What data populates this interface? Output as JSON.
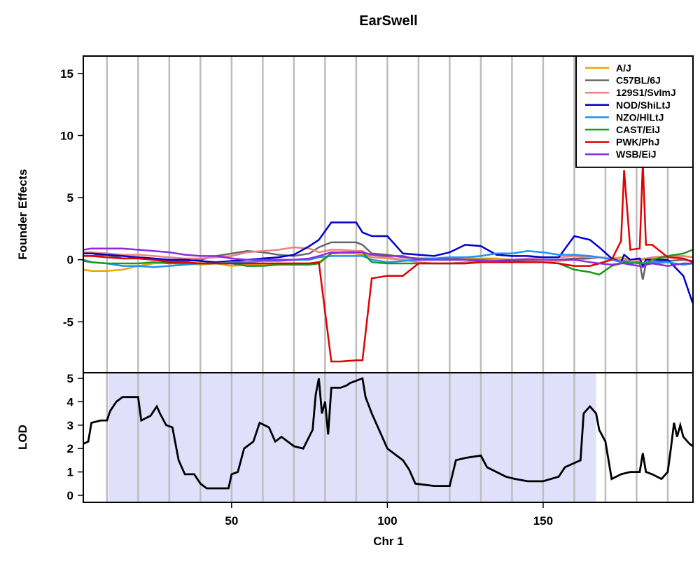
{
  "chart_data": [
    {
      "type": "line",
      "title": "EarSwell",
      "ylabel": "Founder Effects",
      "xlim": [
        2.4,
        198.1
      ],
      "ylim": [
        -9.1,
        16.4
      ],
      "yticks": [
        -5,
        0,
        5,
        10,
        15
      ],
      "xgrid": [
        10,
        20,
        30,
        40,
        50,
        60,
        70,
        80,
        90,
        100,
        110,
        120,
        130,
        140,
        150,
        160,
        170,
        180,
        190
      ],
      "legend": "topright",
      "x": [
        2.5,
        5,
        10,
        15,
        20,
        25,
        30,
        35,
        40,
        45,
        50,
        55,
        60,
        65,
        70,
        75,
        78,
        82,
        85,
        90,
        92,
        95,
        100,
        105,
        110,
        115,
        120,
        125,
        130,
        135,
        140,
        145,
        150,
        155,
        160,
        165,
        168,
        172,
        175,
        176,
        178,
        181,
        182,
        183,
        185,
        190,
        195,
        198
      ],
      "series": [
        {
          "name": "A/J",
          "color": "#e8a800",
          "values": [
            -0.8,
            -0.9,
            -0.9,
            -0.8,
            -0.5,
            -0.3,
            -0.2,
            -0.3,
            -0.4,
            -0.3,
            -0.5,
            -0.4,
            -0.4,
            -0.3,
            -0.3,
            -0.3,
            -0.2,
            0.5,
            0.5,
            0.5,
            0.4,
            0.2,
            0.1,
            0,
            0,
            0.1,
            0.1,
            0.1,
            0.1,
            0.1,
            0,
            -0.1,
            -0.2,
            -0.1,
            0,
            0.1,
            0.2,
            0.1,
            0.2,
            0.1,
            0,
            0,
            0.1,
            0.1,
            0.1,
            0.2,
            0.3,
            0.2
          ]
        },
        {
          "name": "C57BL/6J",
          "color": "#666666",
          "values": [
            0.3,
            0.3,
            0.4,
            0.1,
            0.1,
            0,
            -0.1,
            -0.1,
            0,
            0.3,
            0.5,
            0.7,
            0.6,
            0.4,
            0.3,
            0.5,
            1.0,
            1.4,
            1.4,
            1.4,
            1.2,
            0.5,
            0.4,
            0.2,
            0.1,
            0.1,
            0.1,
            0,
            0,
            0,
            0,
            0,
            0,
            0,
            0.1,
            0.1,
            0.2,
            0.1,
            0,
            0,
            -0.2,
            -0.3,
            -1.6,
            -0.3,
            -0.2,
            -0.1,
            0,
            -0.1
          ]
        },
        {
          "name": "129S1/SvImJ",
          "color": "#f08080",
          "values": [
            0.6,
            0.6,
            0.5,
            0.4,
            0.4,
            0.3,
            0.2,
            0.1,
            0.1,
            0.2,
            0.3,
            0.6,
            0.7,
            0.8,
            1.0,
            0.9,
            0.6,
            0.8,
            0.8,
            0.7,
            0.7,
            0.2,
            0.2,
            0,
            -0.2,
            -0.3,
            -0.3,
            -0.2,
            -0.1,
            0,
            0,
            0.1,
            0.2,
            0.2,
            0.3,
            0.2,
            0.2,
            0.1,
            0,
            0,
            0,
            0,
            0,
            0.1,
            0.2,
            0.3,
            0.3,
            0.2
          ]
        },
        {
          "name": "NOD/ShiLtJ",
          "color": "#0000cc",
          "values": [
            0.5,
            0.5,
            0.4,
            0.3,
            0.2,
            0.1,
            0,
            0,
            -0.1,
            -0.2,
            -0.1,
            0,
            0.1,
            0.2,
            0.4,
            1.1,
            1.6,
            3.0,
            3.0,
            3.0,
            2.2,
            1.9,
            1.9,
            0.5,
            0.4,
            0.3,
            0.6,
            1.2,
            1.1,
            0.4,
            0.3,
            0.3,
            0.2,
            0.2,
            1.9,
            1.6,
            1.0,
            0.1,
            -0.2,
            0.4,
            0,
            0.1,
            -0.5,
            0,
            0,
            0,
            -1.3,
            -3.5
          ]
        },
        {
          "name": "NZO/HlLtJ",
          "color": "#1e90ff",
          "values": [
            0,
            -0.2,
            -0.3,
            -0.5,
            -0.5,
            -0.6,
            -0.5,
            -0.4,
            -0.3,
            -0.3,
            -0.2,
            -0.2,
            -0.1,
            -0.1,
            0,
            0,
            0.2,
            0.3,
            0.3,
            0.3,
            0.3,
            0,
            -0.2,
            -0.1,
            0,
            0.1,
            0.2,
            0.2,
            0.3,
            0.5,
            0.5,
            0.7,
            0.6,
            0.4,
            0.4,
            0.3,
            0.2,
            0,
            -0.2,
            -0.1,
            -0.2,
            -0.2,
            -0.3,
            -0.2,
            -0.3,
            -0.2,
            -0.4,
            -0.3
          ]
        },
        {
          "name": "CAST/EiJ",
          "color": "#1a9a1a",
          "values": [
            -0.1,
            -0.2,
            -0.3,
            -0.3,
            -0.3,
            -0.2,
            -0.3,
            -0.3,
            -0.3,
            -0.3,
            -0.3,
            -0.5,
            -0.5,
            -0.4,
            -0.4,
            -0.4,
            -0.3,
            0.5,
            0.6,
            0.6,
            0.6,
            -0.2,
            -0.3,
            -0.3,
            -0.3,
            -0.3,
            -0.3,
            -0.3,
            -0.2,
            -0.1,
            -0.1,
            -0.2,
            -0.2,
            -0.3,
            -0.8,
            -1.0,
            -1.2,
            -0.5,
            -0.3,
            -0.2,
            -0.3,
            -0.2,
            -0.3,
            -0.3,
            0,
            0.3,
            0.5,
            0.8
          ]
        },
        {
          "name": "PWK/PhJ",
          "color": "#e00000",
          "values": [
            0.3,
            0.3,
            0.2,
            0.1,
            0.1,
            0,
            -0.2,
            -0.2,
            -0.3,
            -0.3,
            -0.3,
            -0.3,
            -0.3,
            -0.3,
            -0.3,
            -0.3,
            -0.2,
            -8.2,
            -8.2,
            -8.1,
            -8.1,
            -1.5,
            -1.3,
            -1.3,
            -0.3,
            -0.3,
            -0.3,
            -0.3,
            -0.2,
            -0.2,
            -0.2,
            -0.2,
            -0.2,
            -0.3,
            -0.5,
            -0.5,
            -0.3,
            0,
            1.5,
            7.2,
            0.8,
            0.9,
            7.8,
            1.2,
            1.2,
            0.2,
            0.1,
            -0.2
          ]
        },
        {
          "name": "WSB/EiJ",
          "color": "#8a2be2",
          "values": [
            0.8,
            0.9,
            0.9,
            0.9,
            0.8,
            0.7,
            0.6,
            0.4,
            0.3,
            0.3,
            0.1,
            0,
            0,
            0,
            0,
            0.1,
            0.3,
            0.6,
            0.6,
            0.6,
            0.6,
            0.4,
            0.3,
            0.3,
            0,
            0,
            0,
            0,
            -0.1,
            -0.1,
            0,
            0,
            0,
            0,
            0,
            -0.2,
            -0.3,
            -0.4,
            -0.3,
            -0.3,
            -0.4,
            -0.5,
            -0.6,
            -0.4,
            -0.3,
            -0.5,
            -0.3,
            -0.3
          ]
        }
      ]
    },
    {
      "type": "line",
      "ylabel": "LOD",
      "xlabel": "Chr 1",
      "xlim": [
        2.4,
        198.1
      ],
      "xticks": [
        50,
        100,
        150
      ],
      "ylim": [
        -0.3,
        5.24
      ],
      "yticks": [
        0,
        1,
        2,
        3,
        4,
        5
      ],
      "interval": [
        10.5,
        167
      ],
      "interval_color": "#e0e0fb",
      "color": "#000000",
      "x": [
        2.4,
        4,
        5,
        8,
        10,
        11,
        13,
        15,
        20,
        21,
        24,
        26,
        27,
        29,
        31,
        33,
        35,
        38,
        40,
        42,
        45,
        49,
        50,
        52,
        54,
        57,
        59,
        62,
        64,
        66,
        70,
        73,
        76,
        77,
        78,
        79,
        80,
        81,
        82,
        85,
        87,
        88,
        90,
        92,
        93,
        95,
        97,
        100,
        103,
        105,
        107,
        109,
        115,
        120,
        122,
        125,
        130,
        132,
        135,
        138,
        141,
        145,
        150,
        155,
        157,
        162,
        163,
        165,
        167,
        168,
        170,
        172,
        175,
        178,
        181,
        182,
        183,
        185,
        188,
        190,
        191,
        192,
        193,
        194,
        195,
        197,
        198
      ],
      "values": [
        2.2,
        2.3,
        3.1,
        3.2,
        3.2,
        3.6,
        4.0,
        4.2,
        4.2,
        3.2,
        3.4,
        3.8,
        3.5,
        3.0,
        2.9,
        1.5,
        0.9,
        0.9,
        0.5,
        0.3,
        0.3,
        0.3,
        0.9,
        1.0,
        2.0,
        2.3,
        3.1,
        2.9,
        2.3,
        2.5,
        2.1,
        2.0,
        2.8,
        4.3,
        5.0,
        3.5,
        4.0,
        2.6,
        4.6,
        4.6,
        4.7,
        4.8,
        4.9,
        5.0,
        4.2,
        3.5,
        2.9,
        2.0,
        1.7,
        1.5,
        1.1,
        0.5,
        0.4,
        0.4,
        1.5,
        1.6,
        1.7,
        1.2,
        1.0,
        0.8,
        0.7,
        0.6,
        0.6,
        0.8,
        1.2,
        1.5,
        3.5,
        3.8,
        3.5,
        2.8,
        2.3,
        0.7,
        0.9,
        1.0,
        1.0,
        1.8,
        1.0,
        0.9,
        0.7,
        1.0,
        2.0,
        3.1,
        2.5,
        3.0,
        2.5,
        2.2,
        2.1
      ]
    }
  ]
}
